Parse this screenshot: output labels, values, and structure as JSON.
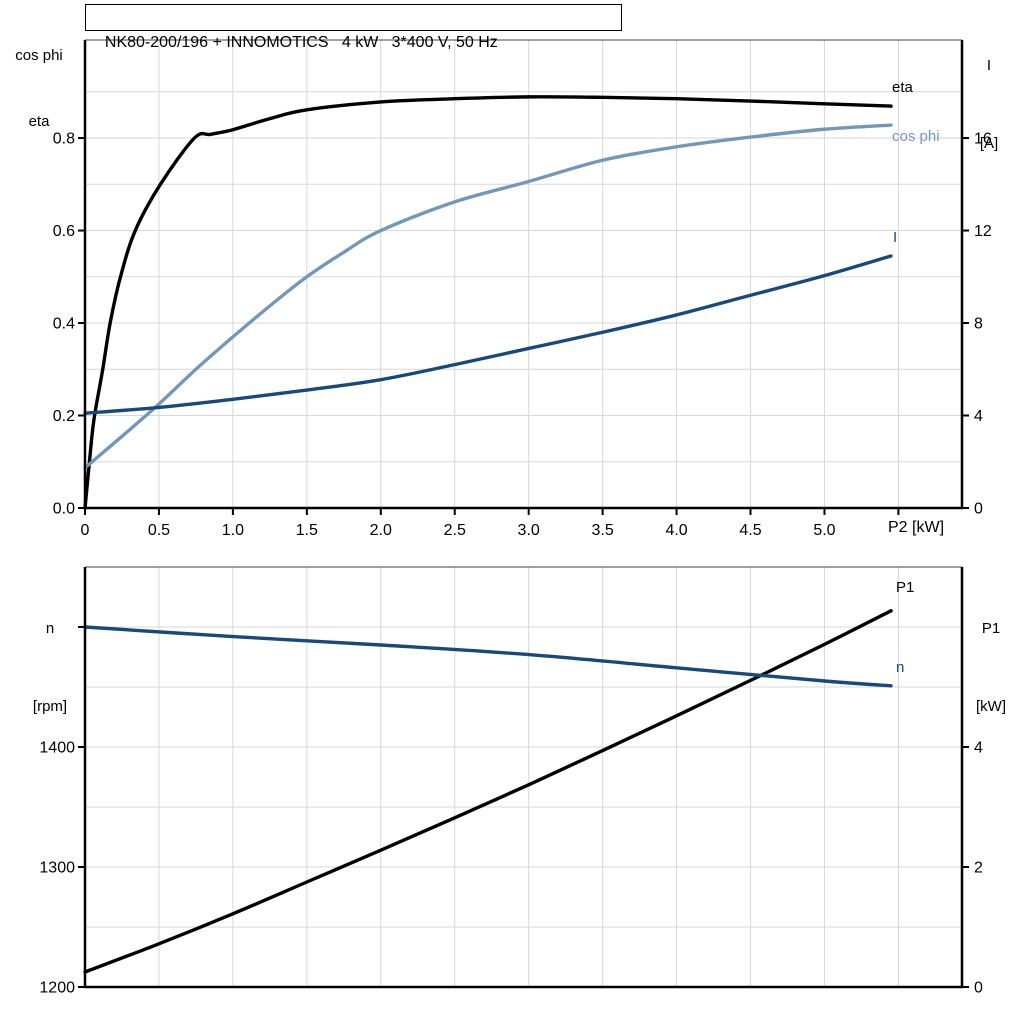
{
  "title": "NK80-200/196 + INNOMOTICS   4 kW   3*400 V, 50 Hz",
  "axis_headers": {
    "top_left": [
      "cos phi",
      "eta"
    ],
    "top_right": [
      "I",
      "[A]"
    ],
    "bottom_left": [
      "n",
      "[rpm]"
    ],
    "bottom_right": [
      "P1",
      "[kW]"
    ]
  },
  "curve_labels": {
    "eta": "eta",
    "cos_phi": "cos phi",
    "current": "I",
    "p1": "P1",
    "n": "n"
  },
  "colors": {
    "eta": "#000000",
    "cos_phi": "#7397b9",
    "current": "#17497c",
    "p1": "#000000",
    "n": "#17497c",
    "grid": "#d7d7d7",
    "axis": "#000000"
  },
  "chart_data": [
    {
      "type": "line",
      "title": "NK80-200/196 + INNOMOTICS   4 kW   3*400 V, 50 Hz",
      "xlabel": "P2 [kW]",
      "xlim": [
        0,
        5.93
      ],
      "x_grid": [
        0.5,
        1.0,
        1.5,
        2.0,
        2.5,
        3.0,
        3.5,
        4.0,
        4.5,
        5.0,
        5.5
      ],
      "x_ticks": {
        "values": [
          0,
          0.5,
          1.0,
          1.5,
          2.0,
          2.5,
          3.0,
          3.5,
          4.0,
          4.5,
          5.0,
          5.5
        ],
        "labels": [
          "0",
          "0.5",
          "1.0",
          "1.5",
          "2.0",
          "2.5",
          "3.0",
          "3.5",
          "4.0",
          "4.5",
          "5.0",
          ""
        ]
      },
      "left_axis": {
        "title": "cos phi / eta",
        "range": [
          0,
          1.012
        ],
        "grid": [
          0.1,
          0.2,
          0.3,
          0.4,
          0.5,
          0.6,
          0.7,
          0.8,
          0.9
        ],
        "ticks": {
          "values": [
            0,
            0.2,
            0.4,
            0.6,
            0.8
          ],
          "labels": [
            "0.0",
            "0.2",
            "0.4",
            "0.6",
            "0.8"
          ]
        }
      },
      "right_axis": {
        "title": "I [A]",
        "range": [
          0,
          20.24
        ],
        "ticks": {
          "values": [
            0,
            4,
            8,
            12,
            16
          ],
          "labels": [
            "0",
            "4",
            "8",
            "12",
            "16"
          ]
        }
      },
      "series": [
        {
          "name": "eta",
          "axis": "left",
          "color": "#000000",
          "x": [
            0,
            0.03,
            0.06,
            0.12,
            0.17,
            0.24,
            0.34,
            0.51,
            0.74,
            0.85,
            1.0,
            1.25,
            1.5,
            2.0,
            2.5,
            3.0,
            3.5,
            4.0,
            4.5,
            5.0,
            5.45
          ],
          "y": [
            0,
            0.1,
            0.19,
            0.3,
            0.4,
            0.5,
            0.6,
            0.7,
            0.8,
            0.808,
            0.818,
            0.842,
            0.861,
            0.878,
            0.885,
            0.889,
            0.888,
            0.885,
            0.88,
            0.874,
            0.869
          ]
        },
        {
          "name": "cos phi",
          "axis": "left",
          "color": "#7397b9",
          "x": [
            0,
            0.25,
            0.5,
            0.75,
            1.0,
            1.25,
            1.5,
            1.75,
            2.0,
            2.5,
            3.0,
            3.5,
            4.0,
            4.5,
            5.0,
            5.45
          ],
          "y": [
            0.087,
            0.155,
            0.225,
            0.3,
            0.37,
            0.437,
            0.5,
            0.553,
            0.6,
            0.662,
            0.706,
            0.752,
            0.781,
            0.802,
            0.819,
            0.828
          ]
        },
        {
          "name": "I",
          "axis": "right",
          "color": "#17497c",
          "x": [
            0,
            0.5,
            1.0,
            1.5,
            2.0,
            2.5,
            3.0,
            3.5,
            4.0,
            4.5,
            5.0,
            5.45
          ],
          "y": [
            4.1,
            4.35,
            4.7,
            5.1,
            5.55,
            6.2,
            6.9,
            7.6,
            8.35,
            9.2,
            10.05,
            10.9
          ]
        }
      ]
    },
    {
      "type": "line",
      "xlabel": "",
      "xlim": [
        0,
        5.93
      ],
      "x_grid": [
        0.5,
        1.0,
        1.5,
        2.0,
        2.5,
        3.0,
        3.5,
        4.0,
        4.5,
        5.0,
        5.5
      ],
      "x_ticks": {
        "values": [],
        "labels": []
      },
      "left_axis": {
        "title": "n [rpm]",
        "range": [
          1200,
          1550
        ],
        "grid": [
          1250,
          1300,
          1350,
          1400,
          1450,
          1500
        ],
        "ticks": {
          "values": [
            1200,
            1300,
            1400,
            1500
          ],
          "labels": [
            "1200",
            "1300",
            "1400",
            ""
          ]
        }
      },
      "right_axis": {
        "title": "P1 [kW]",
        "range": [
          0,
          7
        ],
        "ticks": {
          "values": [
            0,
            2,
            4
          ],
          "labels": [
            "0",
            "2",
            "4"
          ]
        }
      },
      "series": [
        {
          "name": "P1",
          "axis": "right",
          "color": "#000000",
          "x": [
            0,
            0.5,
            1.0,
            1.5,
            2.0,
            2.5,
            3.0,
            3.5,
            4.0,
            4.5,
            5.0,
            5.45
          ],
          "y": [
            0.25,
            0.72,
            1.22,
            1.75,
            2.28,
            2.82,
            3.37,
            3.94,
            4.52,
            5.11,
            5.71,
            6.27
          ]
        },
        {
          "name": "n",
          "axis": "left",
          "color": "#17497c",
          "x": [
            0,
            1.0,
            2.0,
            3.0,
            4.0,
            5.0,
            5.45
          ],
          "y": [
            1500,
            1492,
            1485,
            1477,
            1466,
            1455,
            1451
          ]
        }
      ]
    }
  ]
}
